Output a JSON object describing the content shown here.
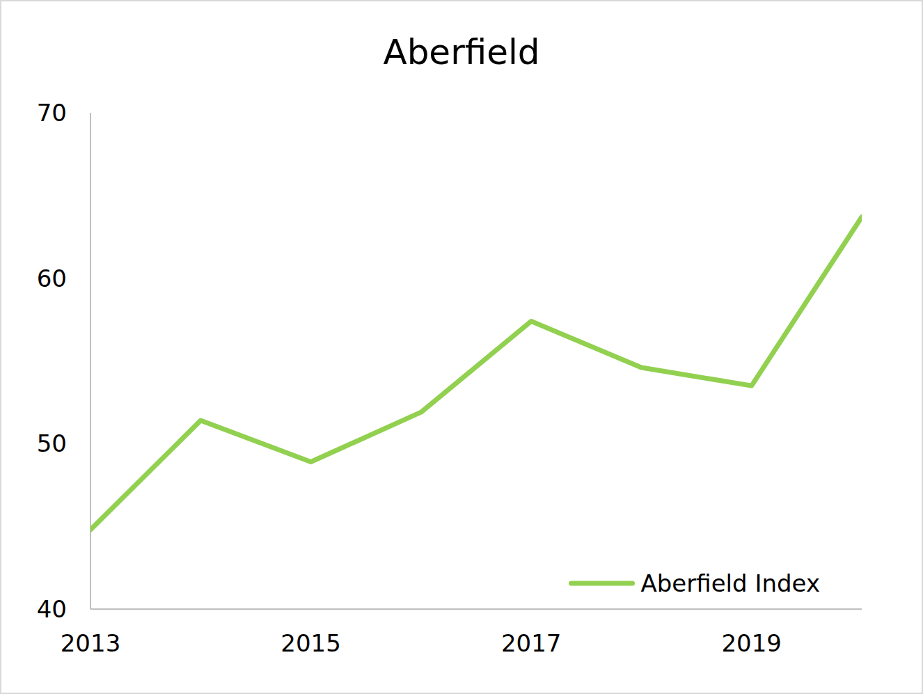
{
  "chart_data": {
    "type": "line",
    "title": "Aberfield",
    "x": [
      2013,
      2014,
      2015,
      2016,
      2017,
      2018,
      2019,
      2020
    ],
    "series": [
      {
        "name": "Aberfield Index",
        "color": "#92d050",
        "values": [
          44.8,
          51.4,
          48.9,
          51.9,
          57.4,
          54.6,
          53.5,
          63.7
        ]
      }
    ],
    "xlim": [
      2013,
      2020
    ],
    "xticks": [
      2013,
      2015,
      2017,
      2019
    ],
    "ylim": [
      40,
      70
    ],
    "yticks": [
      40,
      50,
      60,
      70
    ],
    "grid": false,
    "legend": "lower right"
  }
}
